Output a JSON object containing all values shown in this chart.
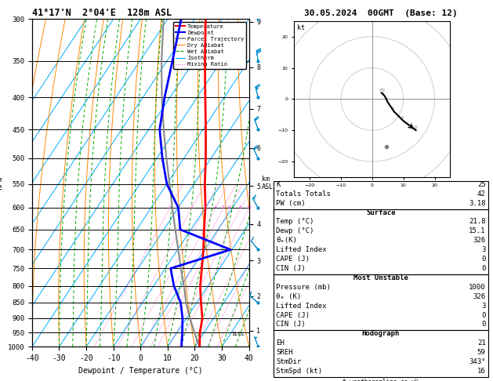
{
  "title_left": "41°17'N  2°04'E  128m ASL",
  "title_right": "30.05.2024  00GMT  (Base: 12)",
  "xlabel": "Dewpoint / Temperature (°C)",
  "pressure_levels": [
    300,
    350,
    400,
    450,
    500,
    550,
    600,
    650,
    700,
    750,
    800,
    850,
    900,
    950,
    1000
  ],
  "temp_data": {
    "pressure": [
      1000,
      950,
      900,
      850,
      800,
      750,
      700,
      650,
      600,
      550,
      500,
      450,
      400,
      350,
      300
    ],
    "temperature": [
      21.8,
      18.5,
      15.8,
      11.5,
      7.2,
      3.5,
      -0.5,
      -5.2,
      -10.0,
      -16.0,
      -22.0,
      -29.0,
      -37.0,
      -46.0,
      -56.0
    ]
  },
  "dewp_data": {
    "pressure": [
      1000,
      950,
      900,
      850,
      800,
      750,
      700,
      650,
      600,
      550,
      500,
      450,
      400,
      350,
      300
    ],
    "dewpoint": [
      15.1,
      12.0,
      8.5,
      4.0,
      -2.5,
      -8.0,
      9.5,
      -14.0,
      -20.0,
      -30.0,
      -38.0,
      -46.0,
      -52.0,
      -58.0,
      -65.0
    ]
  },
  "parcel_data": {
    "pressure": [
      1000,
      950,
      900,
      850,
      800,
      750,
      700,
      650,
      600,
      550,
      500,
      450,
      400,
      350,
      300
    ],
    "temperature": [
      21.8,
      16.5,
      11.2,
      6.0,
      1.2,
      -4.2,
      -9.8,
      -15.8,
      -22.2,
      -29.0,
      -36.5,
      -44.5,
      -53.0,
      -62.0,
      -71.5
    ]
  },
  "temp_color": "#ff0000",
  "dewp_color": "#0000ff",
  "parcel_color": "#888888",
  "dry_adiabat_color": "#ff8800",
  "wet_adiabat_color": "#00aa00",
  "isotherm_color": "#00aaff",
  "mixing_ratio_color": "#ff44cc",
  "skew_deg": 45,
  "mixing_ratios": [
    1,
    2,
    3,
    4,
    5,
    6,
    8,
    10,
    15,
    20,
    25
  ],
  "km_pressures": [
    303,
    358,
    417,
    482,
    554,
    637,
    728,
    830,
    942
  ],
  "km_labels": [
    9,
    8,
    7,
    6,
    5,
    4,
    3,
    2,
    1
  ],
  "lcl_pressure": 953,
  "table_data": {
    "K": 25,
    "Totals_Totals": 42,
    "PW_cm": "3.18",
    "Surface_Temp": "21.8",
    "Surface_Dewp": "15.1",
    "Surface_theta_e": 326,
    "Surface_LI": 3,
    "Surface_CAPE": 0,
    "Surface_CIN": 0,
    "MU_Pressure": 1000,
    "MU_theta_e": 326,
    "MU_LI": 3,
    "MU_CAPE": 0,
    "MU_CIN": 0,
    "EH": 21,
    "SREH": 59,
    "StmDir": "343°",
    "StmSpd": 16
  },
  "bg_color": "#ffffff"
}
